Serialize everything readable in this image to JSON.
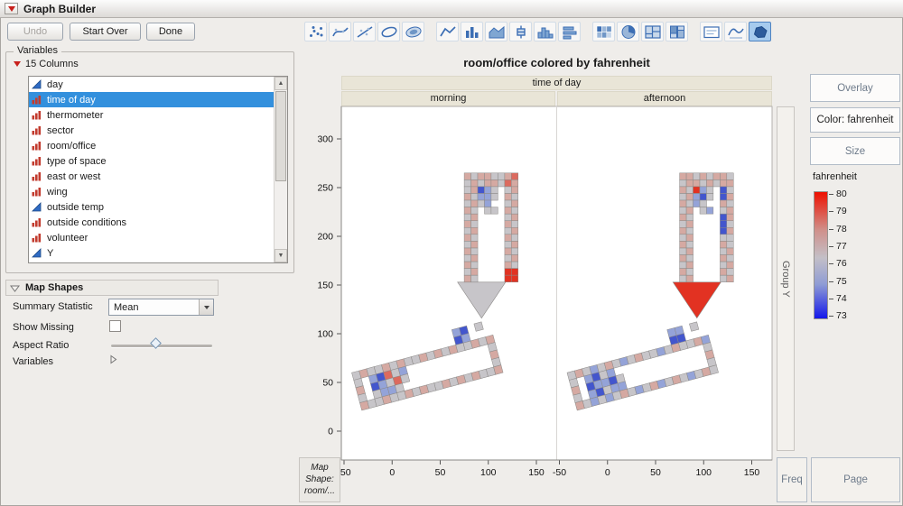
{
  "window": {
    "title": "Graph Builder"
  },
  "toolbar": {
    "undo_label": "Undo",
    "start_over_label": "Start Over",
    "done_label": "Done",
    "icon_groups": [
      [
        "points",
        "smoother",
        "line-of-fit",
        "ellipse",
        "contour"
      ],
      [
        "line",
        "bar",
        "area",
        "box-plot",
        "histogram",
        "interval"
      ],
      [
        "heatmap",
        "pie",
        "treemap",
        "mosaic"
      ],
      [
        "caption-box",
        "formula",
        "map-shapes"
      ]
    ],
    "selected_icon": "map-shapes"
  },
  "variables": {
    "panel_title": "Variables",
    "columns_label": "15 Columns",
    "items": [
      {
        "label": "day",
        "type": "continuous",
        "selected": false
      },
      {
        "label": "time of day",
        "type": "nominal",
        "selected": true
      },
      {
        "label": "thermometer",
        "type": "nominal",
        "selected": false
      },
      {
        "label": "sector",
        "type": "nominal",
        "selected": false
      },
      {
        "label": "room/office",
        "type": "nominal",
        "selected": false
      },
      {
        "label": "type of space",
        "type": "nominal",
        "selected": false
      },
      {
        "label": "east or west",
        "type": "nominal",
        "selected": false
      },
      {
        "label": "wing",
        "type": "nominal",
        "selected": false
      },
      {
        "label": "outside temp",
        "type": "continuous",
        "selected": false
      },
      {
        "label": "outside conditions",
        "type": "nominal",
        "selected": false
      },
      {
        "label": "volunteer",
        "type": "nominal",
        "selected": false
      },
      {
        "label": "Y",
        "type": "continuous",
        "selected": false
      }
    ]
  },
  "map_shapes": {
    "panel_title": "Map Shapes",
    "summary_statistic_label": "Summary Statistic",
    "summary_statistic_value": "Mean",
    "show_missing_label": "Show Missing",
    "aspect_ratio_label": "Aspect Ratio",
    "variables_label": "Variables"
  },
  "graph": {
    "title": "room/office colored by fahrenheit",
    "group_label": "time of day",
    "panel_labels": [
      "morning",
      "afternoon"
    ],
    "y_ticks": [
      0,
      50,
      100,
      150,
      200,
      250,
      300
    ],
    "x_ticks": [
      -50,
      0,
      50,
      100,
      150
    ],
    "map_shape_zone_lines": [
      "Map",
      "Shape:",
      "room/..."
    ]
  },
  "zones": {
    "overlay": "Overlay",
    "color": "Color: fahrenheit",
    "size": "Size",
    "group_y": "Group Y",
    "freq": "Freq",
    "page": "Page"
  },
  "legend": {
    "title": "fahrenheit",
    "values": [
      80,
      79,
      78,
      77,
      76,
      75,
      74,
      73
    ]
  },
  "chart_data": {
    "type": "heatmap",
    "description": "Floor-plan map shapes (room/office) colored by mean fahrenheit, paneled by time of day",
    "color_variable": "fahrenheit",
    "color_range": [
      73,
      80
    ],
    "panels": [
      "morning",
      "afternoon"
    ],
    "palette": {
      "g": "#c7c5c9",
      "p": "#d5a9a2",
      "r": "#dc6a5e",
      "R": "#e23222",
      "b": "#94a3d8",
      "B": "#4356cd"
    },
    "triangle": {
      "morning": "g",
      "afternoon": "R"
    },
    "upper": {
      "morning": [
        "pgppggpr",
        "gpgppgrp",
        "gpBbg.gp",
        "pgbbg.pg",
        "gpgb..gp",
        "pg.gg.pg",
        "gp....gp",
        "pg....pg",
        "gp....gp",
        "pg....pg",
        "gp....gp",
        "pg....pg",
        "gp....gp",
        "pg....pg",
        "gp....RR",
        "pg....RR"
      ],
      "afternoon": [
        "ppgpgppg",
        "gppgpgpp",
        "pgRbg.Bg",
        "gpbBg.Bp",
        "pgbg..pg",
        "gp.gb.gp",
        "pg....Bp",
        "gp....Bg",
        "pg....Bp",
        "gp....gg",
        "pg....pg",
        "gp....gp",
        "pg....pg",
        "gp....gp",
        "pg....pg",
        "gp....gp"
      ]
    },
    "band": {
      "morning": [
        "gpggpgpggpgpgpggpgp",
        "g.bBrgb...........g",
        "p.Bbgrg...........p",
        "g.gbbg............g",
        "pggpggpgpggpgpgpggp"
      ],
      "afternoon": [
        "gpgbgpgbgpggbgpggpb",
        "g.bBgb............g",
        "p.BbbBg...........p",
        "g.bBgbb...........g",
        "pgbgbgpgbgpbgpgbgpg"
      ]
    },
    "band_extras": {
      "morning": [
        [
          14,
          -2,
          "b"
        ],
        [
          15,
          -2,
          "B"
        ],
        [
          14,
          -1,
          "B"
        ],
        [
          15,
          -1,
          "b"
        ],
        [
          17,
          -2,
          "g"
        ]
      ],
      "afternoon": [
        [
          14,
          -2,
          "b"
        ],
        [
          15,
          -2,
          "b"
        ],
        [
          14,
          -1,
          "B"
        ],
        [
          15,
          -1,
          "B"
        ],
        [
          17,
          -2,
          "g"
        ]
      ]
    }
  }
}
